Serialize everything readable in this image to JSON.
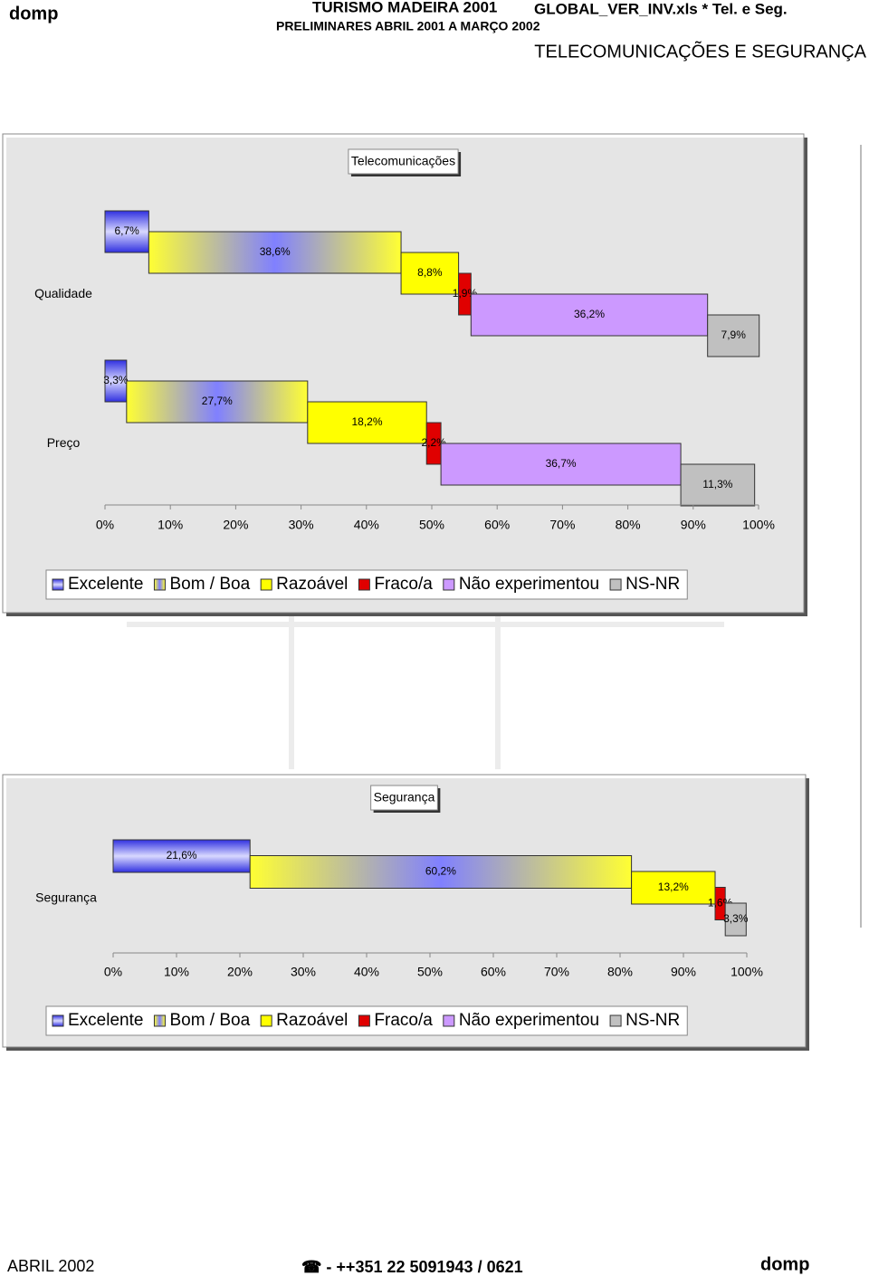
{
  "header": {
    "brand": "domp",
    "title": "TURISMO MADEIRA 2001",
    "file": "GLOBAL_VER_INV.xls  * Tel. e Seg.",
    "subtitle": "PRELIMINARES ABRIL 2001 A MARÇO 2002",
    "section": "TELECOMUNICAÇÕES E SEGURANÇA"
  },
  "chart_data": [
    {
      "type": "bar",
      "title": "Telecomunicações",
      "categories": [
        "Qualidade",
        "Preço"
      ],
      "series": [
        {
          "name": "Excelente",
          "color": "#3030e0",
          "values": [
            6.7,
            3.3
          ],
          "value_labels": [
            "6,7%",
            "3,3%"
          ]
        },
        {
          "name": "Bom / Boa",
          "color": "#ffff33",
          "values": [
            38.6,
            27.7
          ],
          "value_labels": [
            "38,6%",
            "27,7%"
          ]
        },
        {
          "name": "Razoável",
          "color": "#ffff00",
          "values": [
            8.8,
            18.2
          ],
          "value_labels": [
            "8,8%",
            "18,2%"
          ]
        },
        {
          "name": "Fraco/a",
          "color": "#e00000",
          "values": [
            1.9,
            2.2
          ],
          "value_labels": [
            "1,9%",
            "2,2%"
          ]
        },
        {
          "name": "Não experimentou",
          "color": "#cc99ff",
          "values": [
            36.2,
            36.7
          ],
          "value_labels": [
            "36,2%",
            "36,7%"
          ]
        },
        {
          "name": "NS-NR",
          "color": "#c0c0c0",
          "values": [
            7.9,
            11.3
          ],
          "value_labels": [
            "7,9%",
            "11,3%"
          ]
        }
      ],
      "xlim": [
        0,
        100
      ],
      "xticks": [
        {
          "value": 0,
          "label": "0%"
        },
        {
          "value": 10,
          "label": "10%"
        },
        {
          "value": 20,
          "label": "20%"
        },
        {
          "value": 30,
          "label": "30%"
        },
        {
          "value": 40,
          "label": "40%"
        },
        {
          "value": 50,
          "label": "50%"
        },
        {
          "value": 60,
          "label": "60%"
        },
        {
          "value": 70,
          "label": "70%"
        },
        {
          "value": 80,
          "label": "80%"
        },
        {
          "value": 90,
          "label": "90%"
        },
        {
          "value": 100,
          "label": "100%"
        }
      ],
      "legend": "bottom"
    },
    {
      "type": "bar",
      "title": "Segurança",
      "categories": [
        "Segurança"
      ],
      "series": [
        {
          "name": "Excelente",
          "color": "#3030e0",
          "values": [
            21.6
          ],
          "value_labels": [
            "21,6%"
          ]
        },
        {
          "name": "Bom / Boa",
          "color": "#ffff33",
          "values": [
            60.2
          ],
          "value_labels": [
            "60,2%"
          ]
        },
        {
          "name": "Razoável",
          "color": "#ffff00",
          "values": [
            13.2
          ],
          "value_labels": [
            "13,2%"
          ]
        },
        {
          "name": "Fraco/a",
          "color": "#e00000",
          "values": [
            1.6
          ],
          "value_labels": [
            "1,6%"
          ]
        },
        {
          "name": "Não experimentou",
          "color": "#cc99ff",
          "values": [
            null
          ],
          "value_labels": [
            null
          ]
        },
        {
          "name": "NS-NR",
          "color": "#c0c0c0",
          "values": [
            3.3
          ],
          "value_labels": [
            "3,3%"
          ]
        }
      ],
      "xlim": [
        0,
        100
      ],
      "xticks": [
        {
          "value": 0,
          "label": "0%"
        },
        {
          "value": 10,
          "label": "10%"
        },
        {
          "value": 20,
          "label": "20%"
        },
        {
          "value": 30,
          "label": "30%"
        },
        {
          "value": 40,
          "label": "40%"
        },
        {
          "value": 50,
          "label": "50%"
        },
        {
          "value": 60,
          "label": "60%"
        },
        {
          "value": 70,
          "label": "70%"
        },
        {
          "value": 80,
          "label": "80%"
        },
        {
          "value": 90,
          "label": "90%"
        },
        {
          "value": 100,
          "label": "100%"
        }
      ],
      "legend": "bottom"
    }
  ],
  "footer": {
    "date": "ABRIL 2002",
    "phone": "☎ - ++351 22 5091943 / 0621",
    "brand": "domp"
  }
}
